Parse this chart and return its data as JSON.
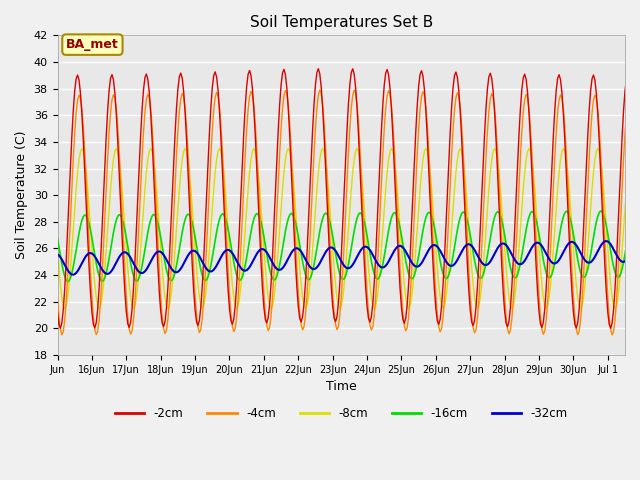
{
  "title": "Soil Temperatures Set B",
  "xlabel": "Time",
  "ylabel": "Soil Temperature (C)",
  "ylim": [
    18,
    42
  ],
  "yticks": [
    18,
    20,
    22,
    24,
    26,
    28,
    30,
    32,
    34,
    36,
    38,
    40,
    42
  ],
  "colors": {
    "-2cm": "#dd0000",
    "-4cm": "#ff8800",
    "-8cm": "#dddd00",
    "-16cm": "#00dd00",
    "-32cm": "#0000cc"
  },
  "annotation_text": "BA_met",
  "annotation_bg": "#ffffbb",
  "annotation_border": "#aa8800",
  "annotation_text_color": "#990000",
  "bg_color": "#e8e8e8",
  "plot_bg": "#f5f5f5",
  "grid_color": "white",
  "tick_positions": [
    15,
    16,
    17,
    18,
    19,
    20,
    21,
    22,
    23,
    24,
    25,
    26,
    27,
    28,
    29,
    30,
    31
  ],
  "tick_labels": [
    "Jun",
    "16Jun",
    "17Jun",
    "18Jun",
    "19Jun",
    "20Jun",
    "21Jun",
    "22Jun",
    "23Jun",
    "24Jun",
    "25Jun",
    "26Jun",
    "27Jun",
    "28Jun",
    "29Jun",
    "30Jun",
    "Jul 1"
  ]
}
